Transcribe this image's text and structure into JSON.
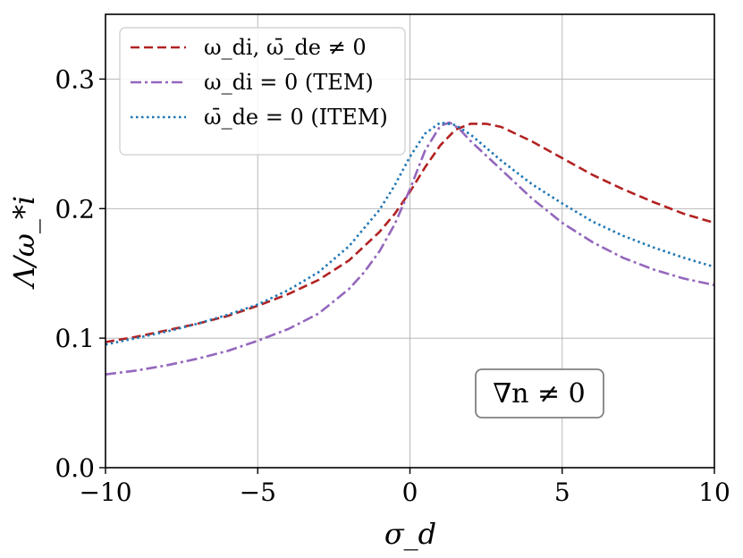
{
  "chart_data": {
    "type": "line",
    "title": "",
    "xlabel": "σ_d",
    "ylabel": "Λ/ω_*i",
    "xlim": [
      -10,
      10
    ],
    "ylim": [
      0,
      0.35
    ],
    "grid": true,
    "legend_position": "top-left",
    "x_ticks": [
      -10,
      -5,
      0,
      5,
      10
    ],
    "x_tick_labels": [
      "−10",
      "−5",
      "0",
      "5",
      "10"
    ],
    "y_ticks": [
      0.0,
      0.1,
      0.2,
      0.3
    ],
    "y_tick_labels": [
      "0.0",
      "0.1",
      "0.2",
      "0.3"
    ],
    "annotation": "∇n ≠ 0",
    "series": [
      {
        "name": "ω_di, ω̄_de ≠ 0",
        "color": "#b22222",
        "style": "dashed",
        "x": [
          -10,
          -9,
          -8,
          -7,
          -6,
          -5,
          -4,
          -3,
          -2,
          -1,
          -0.5,
          0,
          0.5,
          1,
          1.5,
          2,
          2.5,
          3,
          4,
          5,
          6,
          7,
          8,
          9,
          10
        ],
        "y": [
          0.097,
          0.101,
          0.106,
          0.111,
          0.117,
          0.125,
          0.134,
          0.145,
          0.16,
          0.182,
          0.196,
          0.213,
          0.232,
          0.249,
          0.261,
          0.2655,
          0.2655,
          0.263,
          0.252,
          0.239,
          0.226,
          0.215,
          0.205,
          0.196,
          0.189
        ]
      },
      {
        "name": "ω_di = 0 (TEM)",
        "color": "#9467bd",
        "style": "dashdot",
        "x": [
          -10,
          -9,
          -8,
          -7,
          -6,
          -5,
          -4,
          -3,
          -2,
          -1.5,
          -1,
          -0.5,
          0,
          0.5,
          1,
          1.3,
          1.6,
          2,
          3,
          4,
          5,
          6,
          7,
          8,
          9,
          10
        ],
        "y": [
          0.072,
          0.075,
          0.079,
          0.084,
          0.09,
          0.098,
          0.107,
          0.119,
          0.138,
          0.151,
          0.167,
          0.188,
          0.215,
          0.245,
          0.264,
          0.2665,
          0.262,
          0.252,
          0.23,
          0.208,
          0.189,
          0.174,
          0.162,
          0.153,
          0.146,
          0.141
        ]
      },
      {
        "name": "ω̄_de = 0 (ITEM)",
        "color": "#1f77b4",
        "style": "dotted",
        "x": [
          -10,
          -9,
          -8,
          -7,
          -6,
          -5,
          -4,
          -3,
          -2,
          -1,
          -0.5,
          0,
          0.5,
          1,
          1.5,
          2,
          3,
          4,
          5,
          6,
          7,
          8,
          9,
          10
        ],
        "y": [
          0.095,
          0.1,
          0.105,
          0.111,
          0.118,
          0.126,
          0.137,
          0.151,
          0.171,
          0.199,
          0.218,
          0.24,
          0.258,
          0.2665,
          0.2645,
          0.257,
          0.237,
          0.219,
          0.204,
          0.19,
          0.179,
          0.17,
          0.162,
          0.155
        ]
      }
    ]
  }
}
